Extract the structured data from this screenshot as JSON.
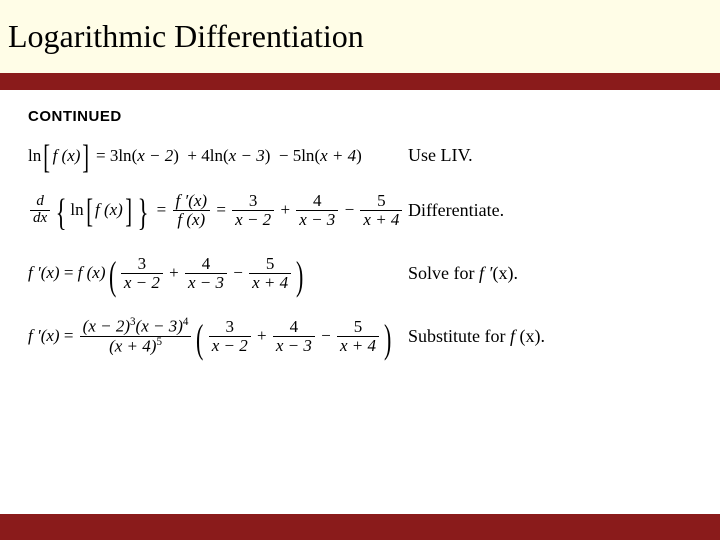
{
  "title": "Logarithmic Differentiation",
  "continued_label": "CONTINUED",
  "colors": {
    "header_bg": "#fffde7",
    "accent": "#8a1b1b",
    "text": "#000000",
    "page_bg": "#ffffff"
  },
  "typography": {
    "title_fontsize": 32,
    "body_fontsize": 18,
    "continued_fontsize": 15
  },
  "rows": [
    {
      "note": "Use LIV."
    },
    {
      "note": "Differentiate."
    },
    {
      "note_prefix": "Solve for ",
      "note_sym": "f ′",
      "note_arg": "(x).",
      "note_suffix": ""
    },
    {
      "note_prefix": "Substitute for ",
      "note_sym": "f ",
      "note_arg": "(x).",
      "note_suffix": ""
    }
  ],
  "math": {
    "ln": "ln",
    "f_of_x": "f (x)",
    "fprime_of_x": "f ′(x)",
    "eq1_rhs_a": "3",
    "eq1_rhs_a2": "x − 2",
    "eq1_rhs_b": "4",
    "eq1_rhs_b2": "x − 3",
    "eq1_rhs_c": "5",
    "eq1_rhs_c2": "x + 4",
    "eq2_frac1_num": "f ′(x)",
    "eq2_frac1_den": "f (x)",
    "eq2_t1n": "3",
    "eq2_t1d": "x − 2",
    "eq2_t2n": "4",
    "eq2_t2d": "x − 3",
    "eq2_t3n": "5",
    "eq2_t3d": "x + 4",
    "eq4_num1": "(x − 2)",
    "eq4_exp1": "3",
    "eq4_num2": "(x − 3)",
    "eq4_exp2": "4",
    "eq4_den": "(x + 4)",
    "eq4_exp3": "5",
    "d": "d",
    "dx": "dx"
  }
}
